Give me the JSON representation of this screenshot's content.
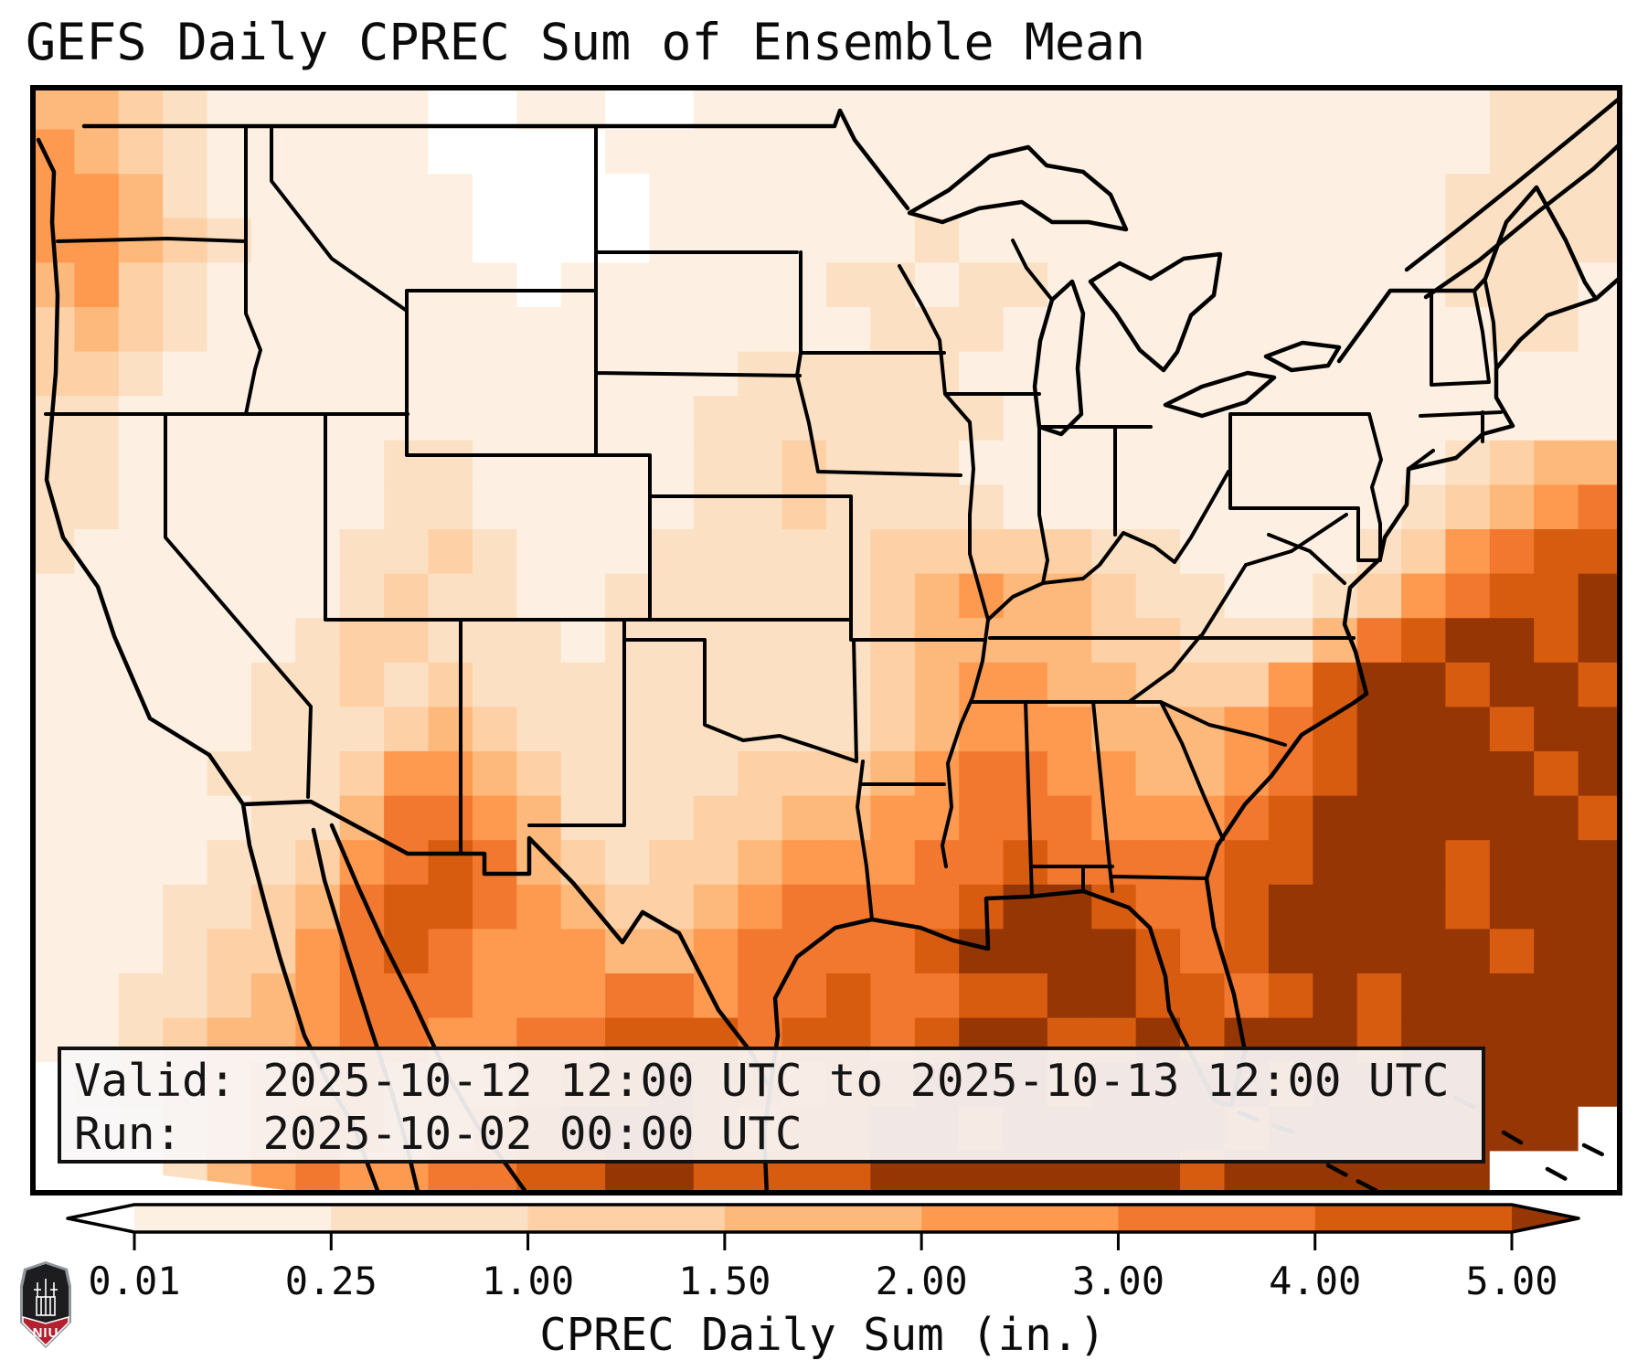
{
  "title": "GEFS Daily CPREC Sum of Ensemble Mean",
  "annotation": {
    "valid_line": "Valid: 2025-10-12 12:00 UTC to 2025-10-13 12:00 UTC",
    "run_line": "Run:   2025-10-02 00:00 UTC"
  },
  "colorbar": {
    "label": "CPREC Daily Sum (in.)",
    "ticks": [
      "0.01",
      "0.25",
      "1.00",
      "1.50",
      "2.00",
      "3.00",
      "4.00",
      "5.00"
    ],
    "boundaries": [
      0.01,
      0.25,
      1.0,
      1.5,
      2.0,
      3.0,
      4.0,
      5.0
    ],
    "extend": "both"
  },
  "palette": {
    "colors": [
      "#ffffff",
      "#fdf0e2",
      "#fbe0c3",
      "#fdd0a6",
      "#fdb97c",
      "#fd9a4f",
      "#f1782e",
      "#d85c10",
      "#963605"
    ],
    "border_color": "#000000",
    "annotation_bg": "#f6f4f5"
  },
  "logo": {
    "text": "NIU",
    "red": "#b3202f",
    "dark": "#1d1d1f",
    "gray": "#8e959b"
  },
  "chart_data": {
    "type": "heatmap",
    "title": "GEFS Daily CPREC Sum of Ensemble Mean",
    "units": "inches of precipitation (CPREC daily sum)",
    "valid": "2025-10-12 12:00 UTC to 2025-10-13 12:00 UTC",
    "run": "2025-10-02 00:00 UTC",
    "projection": "CONUS map, lon -125 to -66, lat 50 to 23",
    "grid_cols": 36,
    "grid_rows": 25,
    "legend_bins": [
      {
        "code": 0,
        "range": "< 0.01"
      },
      {
        "code": 1,
        "range": "0.01 - 0.25"
      },
      {
        "code": 2,
        "range": "0.25 - 1.00"
      },
      {
        "code": 3,
        "range": "1.00 - 1.50"
      },
      {
        "code": 4,
        "range": "1.50 - 2.00"
      },
      {
        "code": 5,
        "range": "2.00 - 3.00"
      },
      {
        "code": 6,
        "range": "3.00 - 4.00"
      },
      {
        "code": 7,
        "range": "4.00 - 5.00"
      },
      {
        "code": 8,
        "range": "> 5.00"
      }
    ],
    "rows": [
      "443211111001100111111111111111111222",
      "543211111000011111111111111111111222",
      "554211111100001111111111111111112222",
      "554321111100001111112111111111112222",
      "453211111110111111221221111111112221",
      "343211111111111111122211111111111221",
      "332111111111111122222111111111111111",
      "221111111111111222222211111111111111",
      "221111112211111223222111111111112344",
      "221111112211111223222211111111123456",
      "211111122321112222233333221111235677",
      "111111123221122222234544322112356778",
      "111111233222122222234444332224678878",
      "111112232322222222234554433357887887",
      "111112223432222222234555444567888788",
      "111122235543222233345665544567888878",
      "111112246654222334455666555678888887",
      "111122356764323345556676666778887888",
      "111223467765433456666788766788887888",
      "111233567655544566667888876788888788",
      "112234566655566566766778877678788888",
      "112344566556677767767887787888788888",
      "012345565556778776778887888878888888",
      "001345665567888767788788888788888880",
      "000245655667788777788888887888888000"
    ]
  }
}
